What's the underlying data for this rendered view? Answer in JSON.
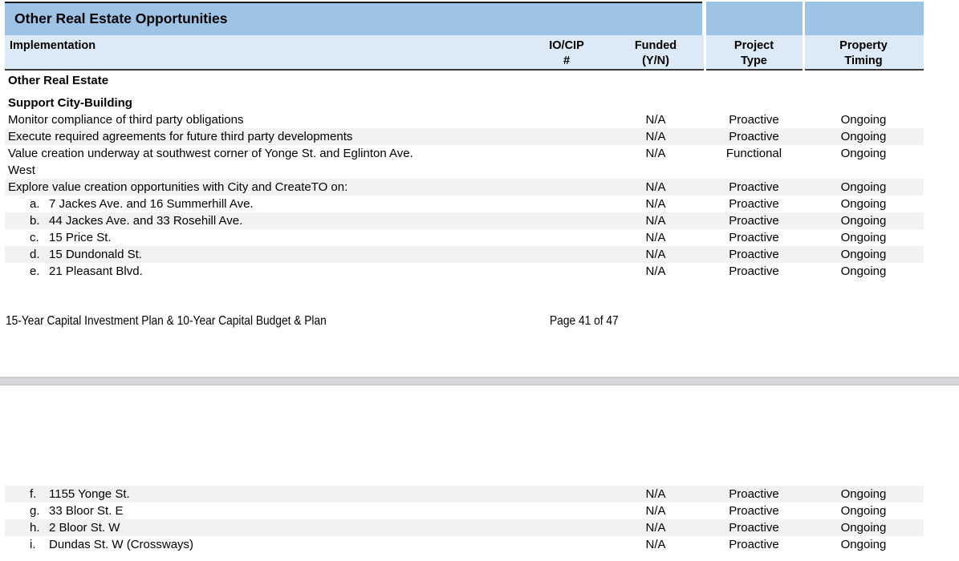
{
  "table": {
    "title": "Other Real Estate Opportunities",
    "columns": [
      {
        "label": "Implementation"
      },
      {
        "label": "IO/CIP\n#"
      },
      {
        "label": "Funded\n(Y/N)"
      },
      {
        "label": "Project\nType"
      },
      {
        "label": "Property\nTiming"
      }
    ]
  },
  "rows_page1": [
    {
      "type": "section",
      "label": "Other Real Estate",
      "gap_after": true,
      "shaded": false
    },
    {
      "type": "section",
      "label": "Support City-Building",
      "shaded": false
    },
    {
      "type": "item",
      "label": "Monitor compliance of third party obligations",
      "io_cip": "",
      "funded": "N/A",
      "project_type": "Proactive",
      "timing": "Ongoing",
      "shaded": false
    },
    {
      "type": "item",
      "label": "Execute required agreements for future third party developments",
      "io_cip": "",
      "funded": "N/A",
      "project_type": "Proactive",
      "timing": "Ongoing",
      "shaded": true
    },
    {
      "type": "item",
      "label": "Value creation underway at southwest corner of Yonge St. and Eglinton Ave.\nWest",
      "io_cip": "",
      "funded": "N/A",
      "project_type": "Functional",
      "timing": "Ongoing",
      "shaded": false
    },
    {
      "type": "item",
      "label": "Explore value creation opportunities with City and CreateTO on:",
      "io_cip": "",
      "funded": "N/A",
      "project_type": "Proactive",
      "timing": "Ongoing",
      "shaded": true
    },
    {
      "type": "item",
      "letter": "a.",
      "label": "7 Jackes Ave. and 16 Summerhill Ave.",
      "io_cip": "",
      "funded": "N/A",
      "project_type": "Proactive",
      "timing": "Ongoing",
      "shaded": false
    },
    {
      "type": "item",
      "letter": "b.",
      "label": "44 Jackes Ave. and 33 Rosehill Ave.",
      "io_cip": "",
      "funded": "N/A",
      "project_type": "Proactive",
      "timing": "Ongoing",
      "shaded": true
    },
    {
      "type": "item",
      "letter": "c.",
      "label": "15 Price St.",
      "io_cip": "",
      "funded": "N/A",
      "project_type": "Proactive",
      "timing": "Ongoing",
      "shaded": false
    },
    {
      "type": "item",
      "letter": "d.",
      "label": "15 Dundonald St.",
      "io_cip": "",
      "funded": "N/A",
      "project_type": "Proactive",
      "timing": "Ongoing",
      "shaded": true
    },
    {
      "type": "item",
      "letter": "e.",
      "label": "21 Pleasant Blvd.",
      "io_cip": "",
      "funded": "N/A",
      "project_type": "Proactive",
      "timing": "Ongoing",
      "shaded": false
    }
  ],
  "rows_page2": [
    {
      "type": "item",
      "letter": "f.",
      "label": "1155 Yonge St.",
      "io_cip": "",
      "funded": "N/A",
      "project_type": "Proactive",
      "timing": "Ongoing",
      "shaded": true
    },
    {
      "type": "item",
      "letter": "g.",
      "label": "33 Bloor St. E",
      "io_cip": "",
      "funded": "N/A",
      "project_type": "Proactive",
      "timing": "Ongoing",
      "shaded": false
    },
    {
      "type": "item",
      "letter": "h.",
      "label": "2 Bloor St. W",
      "io_cip": "",
      "funded": "N/A",
      "project_type": "Proactive",
      "timing": "Ongoing",
      "shaded": true
    },
    {
      "type": "item",
      "letter": "i.",
      "label": "Dundas St. W (Crossways)",
      "io_cip": "",
      "funded": "N/A",
      "project_type": "Proactive",
      "timing": "Ongoing",
      "shaded": false
    }
  ],
  "footer": {
    "left": "15-Year Capital Investment Plan & 10-Year Capital Budget & Plan",
    "right": "Page 41 of 47"
  },
  "colors": {
    "title_bar_blue": "#9dc3e6",
    "header_blue": "#dce9f6",
    "row_shade": "#f2f2f2",
    "header_border": "#3a3a3a",
    "page_gap_gray": "#d8d8db"
  }
}
